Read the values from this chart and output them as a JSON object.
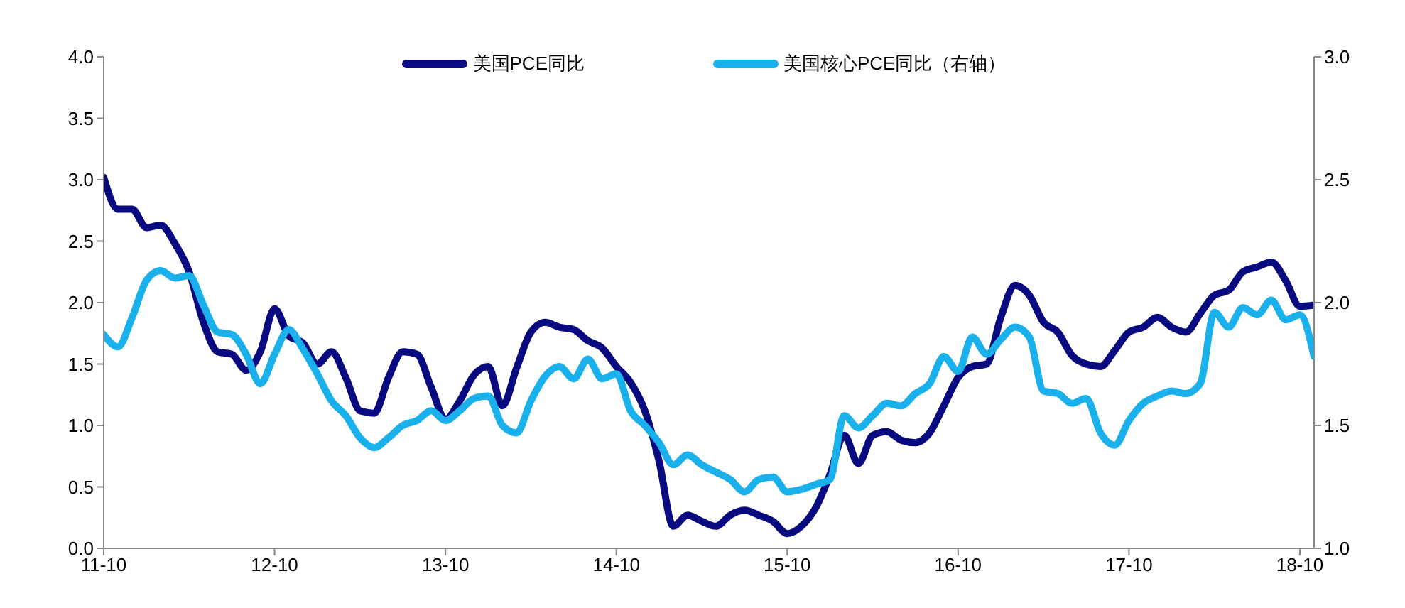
{
  "chart_data": {
    "type": "line",
    "categories": [
      "11-10",
      null,
      null,
      null,
      null,
      null,
      null,
      null,
      null,
      null,
      null,
      null,
      "12-10",
      null,
      null,
      null,
      null,
      null,
      null,
      null,
      null,
      null,
      null,
      null,
      "13-10",
      null,
      null,
      null,
      null,
      null,
      null,
      null,
      null,
      null,
      null,
      null,
      "14-10",
      null,
      null,
      null,
      null,
      null,
      null,
      null,
      null,
      null,
      null,
      null,
      "15-10",
      null,
      null,
      null,
      null,
      null,
      null,
      null,
      null,
      null,
      null,
      null,
      "16-10",
      null,
      null,
      null,
      null,
      null,
      null,
      null,
      null,
      null,
      null,
      null,
      "17-10",
      null,
      null,
      null,
      null,
      null,
      null,
      null,
      null,
      null,
      null,
      null,
      "18-10",
      null
    ],
    "series": [
      {
        "name": "美国PCE同比",
        "color": "#0a0a80",
        "values": [
          3.02,
          2.76,
          2.76,
          2.61,
          2.63,
          2.48,
          2.25,
          1.84,
          1.6,
          1.58,
          1.45,
          1.6,
          1.95,
          1.73,
          1.67,
          1.5,
          1.6,
          1.39,
          1.12,
          1.1,
          1.39,
          1.6,
          1.58,
          1.31,
          1.05,
          1.2,
          1.41,
          1.48,
          1.16,
          1.47,
          1.76,
          1.84,
          1.8,
          1.78,
          1.69,
          1.63,
          1.48,
          1.35,
          1.12,
          0.71,
          0.18,
          0.27,
          0.22,
          0.18,
          0.27,
          0.31,
          0.27,
          0.22,
          0.12,
          0.18,
          0.33,
          0.6,
          0.92,
          0.69,
          0.92,
          0.95,
          0.88,
          0.86,
          0.94,
          1.16,
          1.39,
          1.48,
          1.5,
          1.88,
          2.14,
          2.06,
          1.84,
          1.76,
          1.57,
          1.5,
          1.48,
          1.61,
          1.76,
          1.8,
          1.88,
          1.8,
          1.76,
          1.91,
          2.06,
          2.1,
          2.25,
          2.29,
          2.33,
          2.18,
          1.97,
          1.98
        ]
      },
      {
        "name": "美国核心PCE同比（右轴）",
        "color": "#1ab0ec",
        "axis": "y2",
        "values": [
          1.87,
          1.82,
          1.94,
          2.09,
          2.13,
          2.1,
          2.11,
          1.99,
          1.88,
          1.87,
          1.79,
          1.67,
          1.79,
          1.89,
          1.81,
          1.71,
          1.6,
          1.54,
          1.45,
          1.41,
          1.45,
          1.5,
          1.52,
          1.56,
          1.52,
          1.56,
          1.61,
          1.62,
          1.5,
          1.47,
          1.6,
          1.7,
          1.74,
          1.69,
          1.77,
          1.69,
          1.71,
          1.56,
          1.5,
          1.43,
          1.34,
          1.38,
          1.34,
          1.31,
          1.28,
          1.23,
          1.28,
          1.29,
          1.23,
          1.24,
          1.26,
          1.28,
          1.54,
          1.49,
          1.54,
          1.59,
          1.58,
          1.63,
          1.67,
          1.78,
          1.72,
          1.86,
          1.79,
          1.85,
          1.9,
          1.86,
          1.64,
          1.63,
          1.59,
          1.61,
          1.47,
          1.42,
          1.52,
          1.59,
          1.62,
          1.64,
          1.63,
          1.67,
          1.96,
          1.9,
          1.98,
          1.95,
          2.01,
          1.93,
          1.95,
          1.78
        ]
      }
    ],
    "ylim": [
      0,
      4
    ],
    "yticks": [
      {
        "value": 0,
        "label": "0.0"
      },
      {
        "value": 0.5,
        "label": "0.5"
      },
      {
        "value": 1,
        "label": "1.0"
      },
      {
        "value": 1.5,
        "label": "1.5"
      },
      {
        "value": 2,
        "label": "2.0"
      },
      {
        "value": 2.5,
        "label": "2.5"
      },
      {
        "value": 3,
        "label": "3.0"
      },
      {
        "value": 3.5,
        "label": "3.5"
      },
      {
        "value": 4,
        "label": "4.0"
      }
    ],
    "y2lim": [
      1,
      3
    ],
    "y2ticks": [
      {
        "value": 1,
        "label": "1.0"
      },
      {
        "value": 1.5,
        "label": "1.5"
      },
      {
        "value": 2,
        "label": "2.0"
      },
      {
        "value": 2.5,
        "label": "2.5"
      },
      {
        "value": 3,
        "label": "3.0"
      }
    ],
    "legend": "top",
    "marker": "none",
    "line_style": "solid"
  }
}
